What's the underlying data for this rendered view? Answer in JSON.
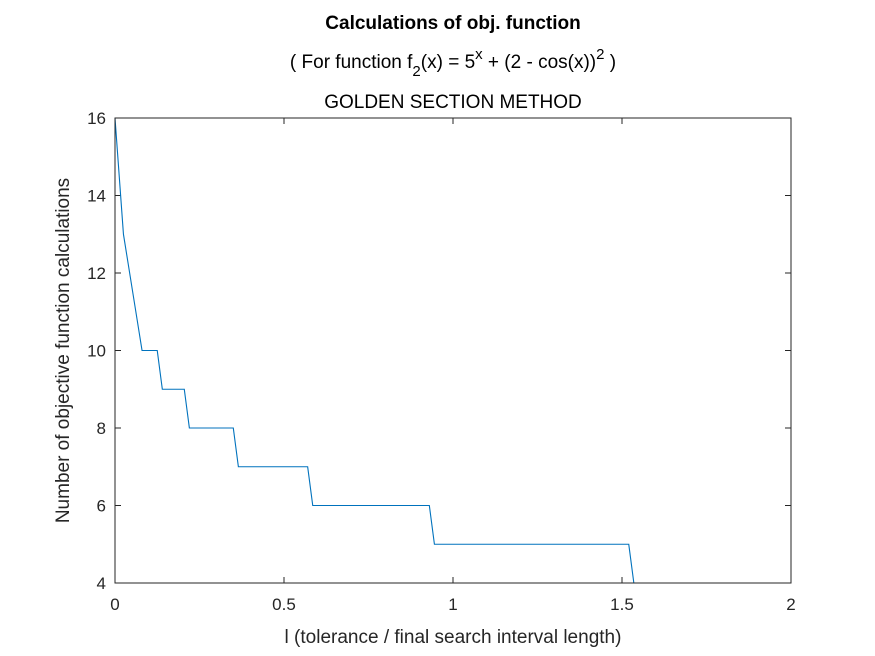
{
  "chart_data": {
    "type": "line",
    "title": "Calculations of obj. function",
    "subtitle": {
      "prefix": "( For function f",
      "f_subscript": "2",
      "mid": "(x) = 5",
      "x_superscript": "x",
      "mid2": " + (2 - cos(x))",
      "sq_superscript": "2",
      "suffix": " )"
    },
    "method_title": "GOLDEN SECTION METHOD",
    "xlabel": "l (tolerance / final search interval length)",
    "ylabel": "Number of objective function calculations",
    "xlim": [
      0,
      2
    ],
    "ylim": [
      4,
      16
    ],
    "xticks": [
      0,
      0.5,
      1,
      1.5,
      2
    ],
    "xtick_labels": [
      "0",
      "0.5",
      "1",
      "1.5",
      "2"
    ],
    "yticks": [
      4,
      6,
      8,
      10,
      12,
      14,
      16
    ],
    "ytick_labels": [
      "4",
      "6",
      "8",
      "10",
      "12",
      "14",
      "16"
    ],
    "grid": false,
    "line_color": "#0072BD",
    "series": [
      {
        "x": [
          0.0,
          0.025,
          0.08,
          0.125,
          0.14,
          0.205,
          0.22,
          0.35,
          0.365,
          0.57,
          0.585,
          0.93,
          0.945,
          1.52,
          1.535,
          2.0
        ],
        "y": [
          16,
          13,
          10,
          10,
          9,
          9,
          8,
          8,
          7,
          7,
          6,
          6,
          5,
          5,
          4,
          4
        ]
      }
    ]
  }
}
